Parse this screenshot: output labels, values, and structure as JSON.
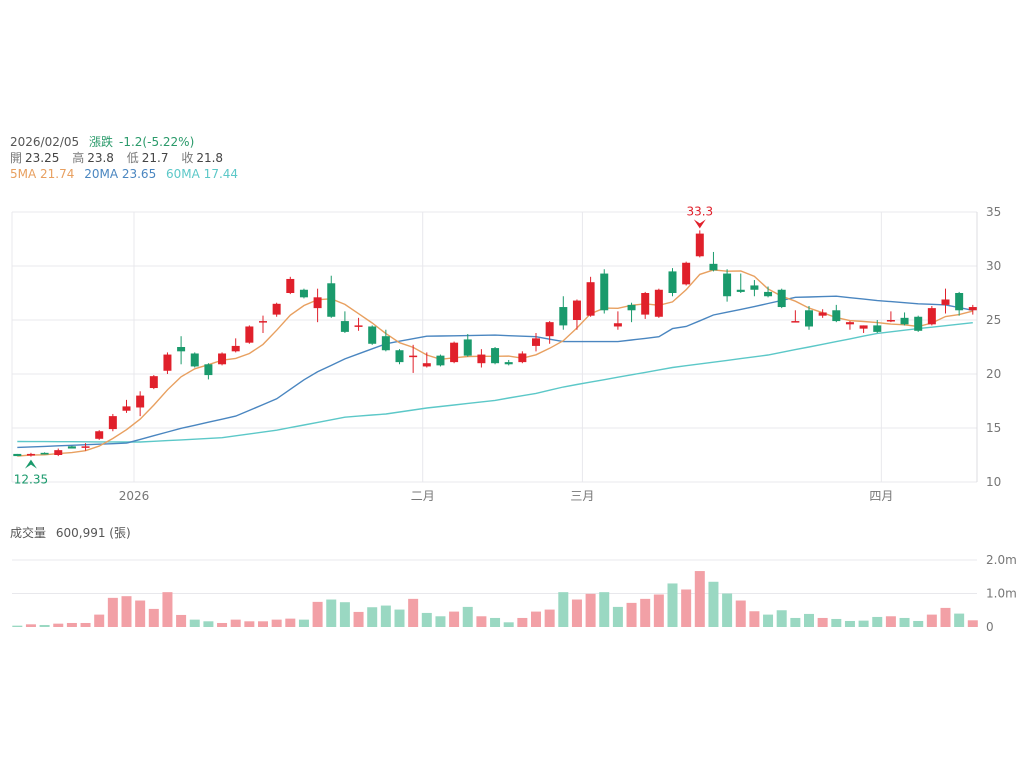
{
  "header": {
    "date": "2026/02/05",
    "change_label": "漲跌",
    "change_value": "-1.2(-5.22%)",
    "open_label": "開",
    "open": "23.25",
    "high_label": "高",
    "high": "23.8",
    "low_label": "低",
    "low": "21.7",
    "close_label": "收",
    "close": "21.8",
    "ma5": "5MA 21.74",
    "ma20": "20MA 23.65",
    "ma60": "60MA 17.44"
  },
  "volume_header": {
    "label": "成交量",
    "value": "600,991 (張)"
  },
  "colors": {
    "up": "#e0202b",
    "down": "#1a9a6c",
    "vol_up": "#f2a0a6",
    "vol_down": "#9ad8c2",
    "ma5": "#e8a060",
    "ma20": "#4a86c0",
    "ma60": "#5cc8c8",
    "grid": "#e8e8ec"
  },
  "chart_data": {
    "type": "candlestick",
    "price_axis": {
      "ylim": [
        10,
        35
      ],
      "ticks": [
        "10",
        "15",
        "20",
        "25",
        "30",
        "35"
      ]
    },
    "volume_axis": {
      "ylim": [
        0,
        2000000
      ],
      "ticks": [
        "0",
        "1.0m",
        "2.0m"
      ],
      "tick_values": [
        0,
        1000000,
        2000000
      ]
    },
    "x_labels": [
      {
        "label": "2026",
        "index": 8.55
      },
      {
        "label": "二月",
        "index": 29.7
      },
      {
        "label": "三月",
        "index": 41.4
      },
      {
        "label": "四月",
        "index": 63.3
      }
    ],
    "annotations": {
      "max": {
        "label": "33.3",
        "index": 50,
        "value": 33.3
      },
      "min": {
        "label": "12.35",
        "index": 1,
        "value": 12.35
      }
    },
    "ohlc": [
      [
        12.6,
        12.6,
        12.4,
        12.4
      ],
      [
        12.45,
        12.7,
        12.35,
        12.6
      ],
      [
        12.7,
        12.75,
        12.55,
        12.55
      ],
      [
        12.5,
        13.1,
        12.4,
        12.95
      ],
      [
        13.3,
        13.35,
        13.1,
        13.1
      ],
      [
        13.2,
        13.6,
        12.9,
        13.3
      ],
      [
        14.0,
        14.8,
        13.9,
        14.7
      ],
      [
        14.9,
        16.3,
        14.7,
        16.1
      ],
      [
        16.6,
        17.6,
        16.4,
        17.0
      ],
      [
        16.9,
        18.4,
        16.1,
        18.0
      ],
      [
        18.7,
        19.9,
        18.6,
        19.8
      ],
      [
        20.3,
        22.0,
        20.0,
        21.8
      ],
      [
        22.5,
        23.5,
        20.9,
        22.1
      ],
      [
        21.9,
        22.0,
        20.6,
        20.7
      ],
      [
        20.9,
        21.0,
        19.5,
        19.9
      ],
      [
        20.9,
        22.0,
        20.8,
        21.9
      ],
      [
        22.1,
        23.3,
        22.0,
        22.6
      ],
      [
        22.9,
        24.5,
        22.8,
        24.4
      ],
      [
        24.8,
        25.4,
        23.8,
        24.9
      ],
      [
        25.5,
        26.6,
        25.3,
        26.5
      ],
      [
        27.5,
        29.0,
        27.4,
        28.8
      ],
      [
        27.8,
        27.9,
        27.0,
        27.1
      ],
      [
        26.1,
        27.9,
        24.8,
        27.1
      ],
      [
        28.4,
        29.1,
        25.2,
        25.3
      ],
      [
        24.9,
        25.8,
        23.8,
        23.9
      ],
      [
        24.4,
        25.2,
        24.0,
        24.5
      ],
      [
        24.4,
        24.5,
        22.7,
        22.8
      ],
      [
        23.5,
        24.1,
        22.1,
        22.2
      ],
      [
        22.2,
        22.3,
        20.9,
        21.1
      ],
      [
        21.6,
        22.7,
        20.1,
        21.7
      ],
      [
        20.7,
        22.0,
        20.6,
        21.0
      ],
      [
        21.7,
        21.8,
        20.7,
        20.8
      ],
      [
        21.1,
        23.0,
        21.0,
        22.9
      ],
      [
        23.2,
        23.7,
        21.6,
        21.7
      ],
      [
        21.0,
        22.3,
        20.6,
        21.8
      ],
      [
        22.4,
        22.5,
        20.9,
        21.0
      ],
      [
        21.1,
        21.3,
        20.8,
        20.9
      ],
      [
        21.1,
        22.1,
        21.0,
        21.9
      ],
      [
        22.6,
        23.8,
        22.1,
        23.3
      ],
      [
        23.5,
        24.9,
        22.8,
        24.8
      ],
      [
        26.2,
        27.2,
        24.1,
        24.5
      ],
      [
        25.0,
        26.9,
        24.1,
        26.8
      ],
      [
        25.4,
        29.0,
        25.3,
        28.5
      ],
      [
        29.3,
        29.7,
        25.6,
        25.9
      ],
      [
        24.4,
        25.8,
        24.1,
        24.7
      ],
      [
        26.4,
        26.6,
        24.8,
        25.9
      ],
      [
        25.5,
        27.6,
        25.1,
        27.5
      ],
      [
        25.3,
        27.9,
        25.2,
        27.8
      ],
      [
        29.5,
        29.8,
        27.2,
        27.5
      ],
      [
        28.3,
        30.4,
        28.2,
        30.3
      ],
      [
        30.9,
        33.3,
        30.8,
        33.0
      ],
      [
        30.2,
        31.3,
        29.5,
        29.6
      ],
      [
        29.3,
        29.7,
        26.7,
        27.2
      ],
      [
        27.8,
        29.3,
        27.5,
        27.6
      ],
      [
        28.2,
        28.7,
        27.2,
        27.8
      ],
      [
        27.6,
        28.1,
        27.1,
        27.2
      ],
      [
        27.8,
        27.9,
        26.1,
        26.2
      ],
      [
        24.8,
        25.9,
        24.8,
        24.9
      ],
      [
        25.9,
        26.3,
        24.1,
        24.4
      ],
      [
        25.4,
        26.0,
        25.2,
        25.7
      ],
      [
        25.9,
        26.4,
        24.8,
        24.9
      ],
      [
        24.6,
        24.9,
        24.1,
        24.8
      ],
      [
        24.2,
        24.5,
        23.8,
        24.5
      ],
      [
        24.5,
        25.0,
        23.8,
        23.9
      ],
      [
        24.9,
        25.8,
        24.8,
        25.0
      ],
      [
        25.2,
        25.7,
        24.5,
        24.6
      ],
      [
        25.3,
        25.4,
        23.9,
        24.0
      ],
      [
        24.6,
        26.3,
        24.5,
        26.1
      ],
      [
        26.4,
        27.9,
        25.6,
        26.9
      ],
      [
        27.5,
        27.6,
        25.4,
        25.9
      ],
      [
        25.9,
        26.4,
        25.5,
        26.2
      ]
    ],
    "volume_m": [
      0.04,
      0.08,
      0.06,
      0.1,
      0.12,
      0.12,
      0.37,
      0.87,
      0.92,
      0.79,
      0.54,
      1.04,
      0.36,
      0.22,
      0.17,
      0.12,
      0.22,
      0.17,
      0.17,
      0.22,
      0.25,
      0.22,
      0.75,
      0.82,
      0.74,
      0.45,
      0.59,
      0.64,
      0.52,
      0.84,
      0.42,
      0.32,
      0.46,
      0.6,
      0.32,
      0.27,
      0.14,
      0.27,
      0.46,
      0.52,
      1.04,
      0.82,
      0.99,
      1.04,
      0.6,
      0.72,
      0.84,
      0.97,
      1.3,
      1.12,
      1.67,
      1.35,
      1.0,
      0.79,
      0.47,
      0.37,
      0.5,
      0.27,
      0.39,
      0.27,
      0.24,
      0.18,
      0.19,
      0.3,
      0.32,
      0.27,
      0.18,
      0.37,
      0.57,
      0.4,
      0.2
    ],
    "ma20_points": [
      [
        0,
        13.2
      ],
      [
        8,
        13.6
      ],
      [
        12,
        14.97
      ],
      [
        16,
        16.1
      ],
      [
        19,
        17.7
      ],
      [
        21.5,
        19.9
      ],
      [
        24,
        21.4
      ],
      [
        27,
        22.8
      ],
      [
        30,
        23.5
      ],
      [
        35,
        23.6
      ],
      [
        38,
        23.45
      ],
      [
        40,
        23.0
      ],
      [
        44,
        23.0
      ],
      [
        47,
        23.45
      ],
      [
        48,
        24.2
      ],
      [
        49,
        24.4
      ],
      [
        51,
        25.46
      ],
      [
        54,
        26.24
      ],
      [
        57,
        27.1
      ],
      [
        60,
        27.2
      ],
      [
        63,
        26.8
      ],
      [
        66,
        26.5
      ],
      [
        68,
        26.4
      ],
      [
        70,
        25.9
      ]
    ],
    "ma60_points": [
      [
        0,
        13.75
      ],
      [
        9,
        13.7
      ],
      [
        15,
        14.1
      ],
      [
        19,
        14.8
      ],
      [
        24,
        16.0
      ],
      [
        27,
        16.3
      ],
      [
        30,
        16.85
      ],
      [
        35,
        17.56
      ],
      [
        38,
        18.2
      ],
      [
        40,
        18.8
      ],
      [
        44,
        19.7
      ],
      [
        48,
        20.6
      ],
      [
        55,
        21.76
      ],
      [
        60,
        23.0
      ],
      [
        63,
        23.76
      ],
      [
        66,
        24.2
      ],
      [
        70,
        24.75
      ]
    ]
  }
}
